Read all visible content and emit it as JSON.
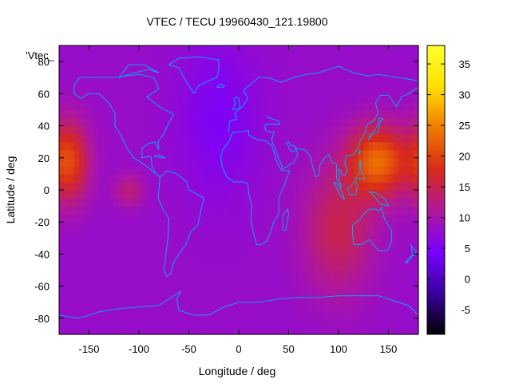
{
  "chart_data": {
    "type": "heatmap",
    "title": "VTEC / TECU 19960430_121.19800",
    "xlabel": "Longitude / deg",
    "ylabel": "Latitude / deg",
    "series_key": "'Vtec_",
    "xlim": [
      -180,
      180
    ],
    "ylim": [
      -90,
      90
    ],
    "xticks": [
      -150,
      -100,
      -50,
      0,
      50,
      100,
      150
    ],
    "yticks": [
      -80,
      -60,
      -40,
      -20,
      0,
      20,
      40,
      60,
      80
    ],
    "colorbar": {
      "range": [
        -9,
        38
      ],
      "ticks": [
        -5,
        0,
        5,
        10,
        15,
        20,
        25,
        30,
        35
      ],
      "palette": [
        "#000000",
        "#3a00a0",
        "#7a00ff",
        "#b0189a",
        "#d82a1a",
        "#f07a00",
        "#ffe000",
        "#ffff30"
      ]
    },
    "field": {
      "background_vtec": 8,
      "blobs": [
        {
          "lon": -170,
          "lat": 18,
          "value": 20,
          "sigma_lon": 20,
          "sigma_lat": 25
        },
        {
          "lon": 140,
          "lat": 18,
          "value": 23,
          "sigma_lon": 30,
          "sigma_lat": 22
        },
        {
          "lon": 100,
          "lat": -25,
          "value": 15,
          "sigma_lon": 35,
          "sigma_lat": 40
        },
        {
          "lon": -110,
          "lat": 0,
          "value": 13,
          "sigma_lon": 15,
          "sigma_lat": 10
        }
      ],
      "minimum": {
        "lon": -20,
        "lat": 45,
        "value": 5,
        "sigma_lon": 40,
        "sigma_lat": 50
      }
    },
    "coastline_color": "#00b0ff"
  }
}
